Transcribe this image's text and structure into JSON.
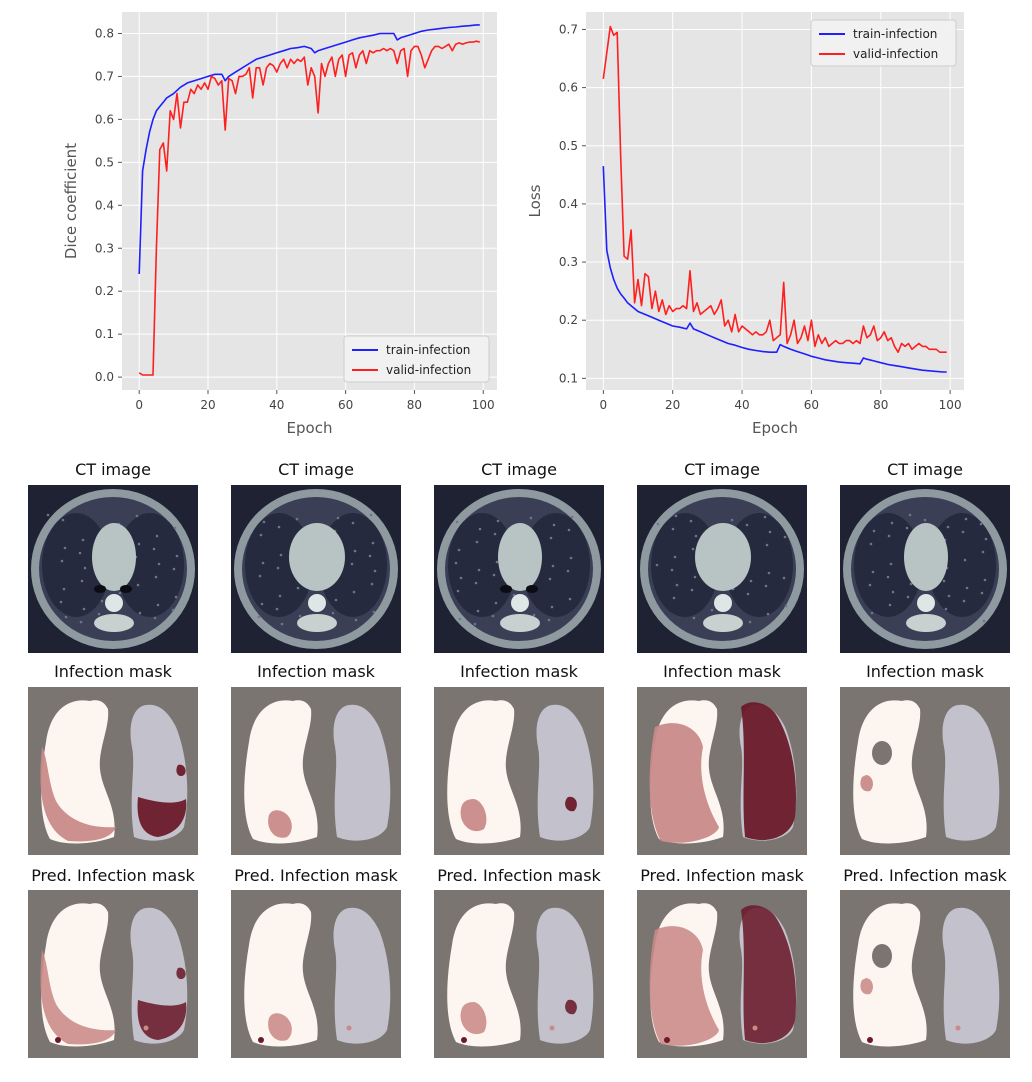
{
  "chart_data": [
    {
      "type": "line",
      "title": "",
      "xlabel": "Epoch",
      "ylabel": "Dice coefficient",
      "xlim": [
        -5,
        104
      ],
      "ylim": [
        -0.03,
        0.85
      ],
      "xticks": [
        0,
        20,
        40,
        60,
        80,
        100
      ],
      "yticks": [
        0.0,
        0.1,
        0.2,
        0.3,
        0.4,
        0.5,
        0.6,
        0.7,
        0.8
      ],
      "grid": true,
      "legend_position": "lower-right",
      "series": [
        {
          "name": "train-infection",
          "color": "#1f1fff",
          "x": [
            0,
            1,
            2,
            3,
            4,
            5,
            6,
            7,
            8,
            10,
            12,
            14,
            16,
            18,
            20,
            22,
            24,
            25,
            26,
            28,
            30,
            32,
            34,
            36,
            38,
            40,
            42,
            44,
            46,
            48,
            50,
            51,
            52,
            54,
            56,
            58,
            60,
            62,
            64,
            66,
            68,
            70,
            72,
            74,
            75,
            76,
            78,
            80,
            82,
            84,
            86,
            88,
            90,
            92,
            94,
            96,
            98,
            99
          ],
          "y": [
            0.24,
            0.48,
            0.53,
            0.57,
            0.6,
            0.62,
            0.63,
            0.64,
            0.65,
            0.66,
            0.675,
            0.685,
            0.69,
            0.695,
            0.7,
            0.705,
            0.705,
            0.69,
            0.7,
            0.71,
            0.72,
            0.73,
            0.74,
            0.745,
            0.75,
            0.755,
            0.76,
            0.765,
            0.767,
            0.77,
            0.765,
            0.755,
            0.76,
            0.765,
            0.77,
            0.775,
            0.78,
            0.785,
            0.79,
            0.793,
            0.796,
            0.8,
            0.8,
            0.8,
            0.785,
            0.79,
            0.795,
            0.8,
            0.805,
            0.808,
            0.81,
            0.812,
            0.814,
            0.815,
            0.817,
            0.818,
            0.82,
            0.82
          ]
        },
        {
          "name": "valid-infection",
          "color": "#ff1f1f",
          "x": [
            0,
            1,
            2,
            3,
            4,
            5,
            6,
            7,
            8,
            9,
            10,
            11,
            12,
            13,
            14,
            15,
            16,
            17,
            18,
            19,
            20,
            21,
            22,
            23,
            24,
            25,
            26,
            27,
            28,
            29,
            30,
            31,
            32,
            33,
            34,
            35,
            36,
            37,
            38,
            39,
            40,
            41,
            42,
            43,
            44,
            45,
            46,
            47,
            48,
            49,
            50,
            51,
            52,
            53,
            54,
            55,
            56,
            57,
            58,
            59,
            60,
            61,
            62,
            63,
            64,
            65,
            66,
            67,
            68,
            69,
            70,
            71,
            72,
            73,
            74,
            75,
            76,
            77,
            78,
            79,
            80,
            81,
            82,
            83,
            84,
            85,
            86,
            87,
            88,
            89,
            90,
            91,
            92,
            93,
            94,
            95,
            96,
            97,
            98,
            99
          ],
          "y": [
            0.01,
            0.005,
            0.005,
            0.005,
            0.005,
            0.3,
            0.53,
            0.545,
            0.48,
            0.62,
            0.6,
            0.66,
            0.58,
            0.64,
            0.64,
            0.67,
            0.66,
            0.68,
            0.67,
            0.685,
            0.67,
            0.7,
            0.695,
            0.68,
            0.69,
            0.575,
            0.695,
            0.69,
            0.66,
            0.7,
            0.7,
            0.705,
            0.72,
            0.65,
            0.72,
            0.72,
            0.68,
            0.72,
            0.73,
            0.725,
            0.71,
            0.73,
            0.74,
            0.72,
            0.74,
            0.73,
            0.74,
            0.735,
            0.745,
            0.68,
            0.72,
            0.7,
            0.615,
            0.73,
            0.7,
            0.73,
            0.745,
            0.7,
            0.74,
            0.75,
            0.7,
            0.75,
            0.755,
            0.72,
            0.75,
            0.76,
            0.73,
            0.76,
            0.755,
            0.76,
            0.76,
            0.765,
            0.76,
            0.765,
            0.76,
            0.73,
            0.76,
            0.765,
            0.7,
            0.76,
            0.77,
            0.77,
            0.75,
            0.72,
            0.74,
            0.76,
            0.77,
            0.77,
            0.765,
            0.77,
            0.775,
            0.76,
            0.775,
            0.778,
            0.775,
            0.778,
            0.78,
            0.78,
            0.782,
            0.78
          ]
        }
      ]
    },
    {
      "type": "line",
      "title": "",
      "xlabel": "Epoch",
      "ylabel": "Loss",
      "xlim": [
        -5,
        104
      ],
      "ylim": [
        0.08,
        0.73
      ],
      "xticks": [
        0,
        20,
        40,
        60,
        80,
        100
      ],
      "yticks": [
        0.1,
        0.2,
        0.3,
        0.4,
        0.5,
        0.6,
        0.7
      ],
      "grid": true,
      "legend_position": "upper-right",
      "series": [
        {
          "name": "train-infection",
          "color": "#1f1fff",
          "x": [
            0,
            1,
            2,
            3,
            4,
            5,
            6,
            7,
            8,
            10,
            12,
            14,
            16,
            18,
            20,
            22,
            24,
            25,
            26,
            28,
            30,
            32,
            34,
            36,
            38,
            40,
            42,
            44,
            46,
            48,
            50,
            51,
            52,
            54,
            56,
            58,
            60,
            62,
            64,
            66,
            68,
            70,
            72,
            74,
            75,
            76,
            78,
            80,
            82,
            84,
            86,
            88,
            90,
            92,
            94,
            96,
            98,
            99
          ],
          "y": [
            0.465,
            0.32,
            0.29,
            0.27,
            0.255,
            0.245,
            0.238,
            0.23,
            0.225,
            0.215,
            0.21,
            0.205,
            0.2,
            0.195,
            0.19,
            0.188,
            0.185,
            0.195,
            0.185,
            0.18,
            0.175,
            0.17,
            0.165,
            0.16,
            0.157,
            0.153,
            0.15,
            0.148,
            0.146,
            0.145,
            0.145,
            0.158,
            0.155,
            0.15,
            0.146,
            0.142,
            0.138,
            0.135,
            0.132,
            0.13,
            0.128,
            0.127,
            0.126,
            0.125,
            0.135,
            0.133,
            0.13,
            0.127,
            0.124,
            0.122,
            0.12,
            0.118,
            0.116,
            0.114,
            0.113,
            0.112,
            0.111,
            0.111
          ]
        },
        {
          "name": "valid-infection",
          "color": "#ff1f1f",
          "x": [
            0,
            1,
            2,
            3,
            4,
            5,
            6,
            7,
            8,
            9,
            10,
            11,
            12,
            13,
            14,
            15,
            16,
            17,
            18,
            19,
            20,
            21,
            22,
            23,
            24,
            25,
            26,
            27,
            28,
            29,
            30,
            31,
            32,
            33,
            34,
            35,
            36,
            37,
            38,
            39,
            40,
            41,
            42,
            43,
            44,
            45,
            46,
            47,
            48,
            49,
            50,
            51,
            52,
            53,
            54,
            55,
            56,
            57,
            58,
            59,
            60,
            61,
            62,
            63,
            64,
            65,
            66,
            67,
            68,
            69,
            70,
            71,
            72,
            73,
            74,
            75,
            76,
            77,
            78,
            79,
            80,
            81,
            82,
            83,
            84,
            85,
            86,
            87,
            88,
            89,
            90,
            91,
            92,
            93,
            94,
            95,
            96,
            97,
            98,
            99
          ],
          "y": [
            0.615,
            0.66,
            0.705,
            0.69,
            0.695,
            0.48,
            0.31,
            0.305,
            0.355,
            0.23,
            0.27,
            0.225,
            0.28,
            0.275,
            0.22,
            0.25,
            0.215,
            0.235,
            0.21,
            0.225,
            0.215,
            0.22,
            0.22,
            0.225,
            0.22,
            0.285,
            0.215,
            0.23,
            0.21,
            0.215,
            0.22,
            0.225,
            0.21,
            0.22,
            0.235,
            0.19,
            0.2,
            0.18,
            0.21,
            0.18,
            0.19,
            0.185,
            0.18,
            0.175,
            0.18,
            0.175,
            0.175,
            0.18,
            0.2,
            0.165,
            0.17,
            0.175,
            0.265,
            0.16,
            0.175,
            0.2,
            0.16,
            0.17,
            0.19,
            0.165,
            0.2,
            0.155,
            0.175,
            0.16,
            0.17,
            0.155,
            0.16,
            0.165,
            0.16,
            0.16,
            0.165,
            0.165,
            0.16,
            0.165,
            0.16,
            0.19,
            0.17,
            0.175,
            0.19,
            0.165,
            0.17,
            0.18,
            0.165,
            0.17,
            0.155,
            0.145,
            0.16,
            0.155,
            0.16,
            0.15,
            0.155,
            0.16,
            0.155,
            0.155,
            0.15,
            0.15,
            0.15,
            0.145,
            0.145,
            0.145
          ]
        }
      ]
    }
  ],
  "panels": {
    "rows": [
      {
        "title": "CT image",
        "kind": "ct"
      },
      {
        "title": "Infection mask",
        "kind": "mask"
      },
      {
        "title": "Pred. Infection mask",
        "kind": "pred"
      }
    ]
  },
  "colors": {
    "axes_bg": "#e5e5e5",
    "grid": "#ffffff",
    "mask_bg": "#7b7572",
    "lung_left": "#fdf5f0",
    "lung_right": "#c2c1cc",
    "infection_light": "#c98a88",
    "infection_dark": "#6a1a2a"
  }
}
